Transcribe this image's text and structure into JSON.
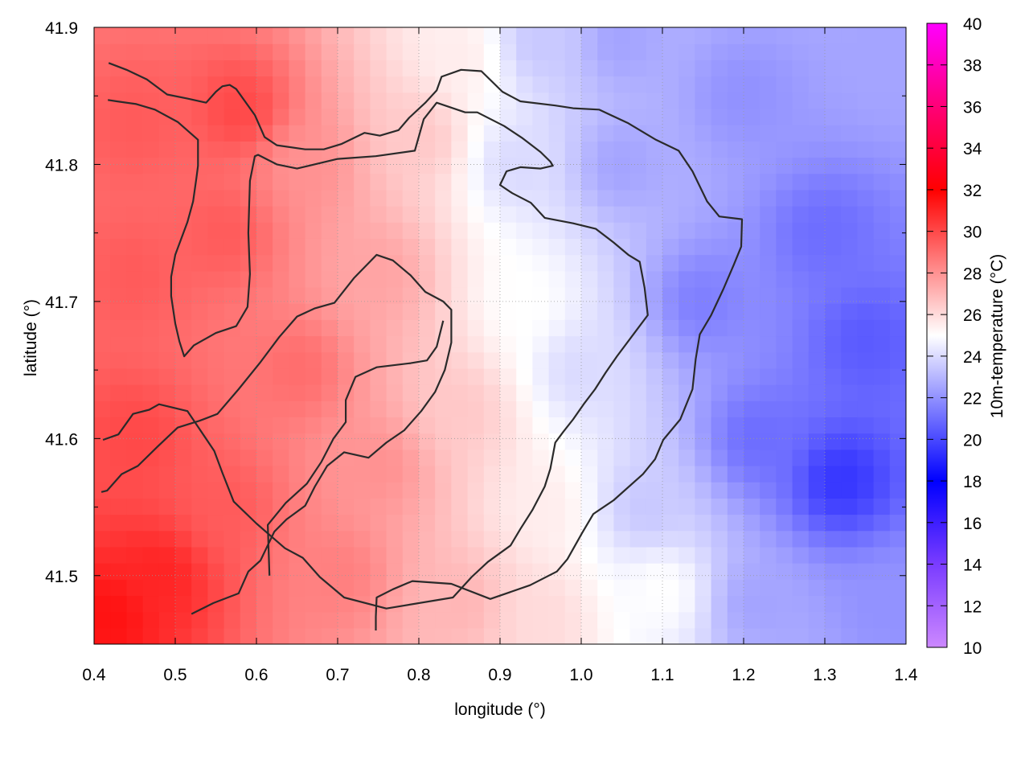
{
  "chart_data": {
    "type": "heatmap",
    "title": "",
    "xlabel": "longitude (°)",
    "ylabel": "latitude (°)",
    "colorbar_label": "10m-temperature (°C)",
    "xlim": [
      0.4,
      1.4
    ],
    "ylim": [
      41.45,
      41.9
    ],
    "x_ticks": [
      0.4,
      0.5,
      0.6,
      0.7,
      0.8,
      0.9,
      1.0,
      1.1,
      1.2,
      1.3,
      1.4
    ],
    "x_tick_labels": [
      "0.4",
      "0.5",
      "0.6",
      "0.7",
      "0.8",
      "0.9",
      "1.0",
      "1.1",
      "1.2",
      "1.3",
      "1.4"
    ],
    "y_ticks": [
      41.5,
      41.6,
      41.7,
      41.8,
      41.9
    ],
    "y_tick_labels": [
      "41.5",
      "41.6",
      "41.7",
      "41.8",
      "41.9"
    ],
    "colorbar_range": [
      10,
      40
    ],
    "colorbar_ticks": [
      10,
      12,
      14,
      16,
      18,
      20,
      22,
      24,
      26,
      28,
      30,
      32,
      34,
      36,
      38,
      40
    ],
    "colorbar_tick_labels": [
      "10",
      "12",
      "14",
      "16",
      "18",
      "20",
      "22",
      "24",
      "26",
      "28",
      "30",
      "32",
      "34",
      "36",
      "38",
      "40"
    ],
    "colormap": [
      {
        "v": 10,
        "color": "#cc88ff"
      },
      {
        "v": 14,
        "color": "#7a3cff"
      },
      {
        "v": 18,
        "color": "#0000ff"
      },
      {
        "v": 25,
        "color": "#ffffff"
      },
      {
        "v": 32,
        "color": "#ff0000"
      },
      {
        "v": 36,
        "color": "#ff0077"
      },
      {
        "v": 40,
        "color": "#ff00ff"
      }
    ],
    "grid": true,
    "field_control_points": [
      {
        "lon": 0.42,
        "lat": 41.47,
        "t": 31.5
      },
      {
        "lon": 0.48,
        "lat": 41.5,
        "t": 31.0
      },
      {
        "lon": 0.45,
        "lat": 41.6,
        "t": 30.0
      },
      {
        "lon": 0.45,
        "lat": 41.72,
        "t": 29.5
      },
      {
        "lon": 0.45,
        "lat": 41.83,
        "t": 29.5
      },
      {
        "lon": 0.58,
        "lat": 41.84,
        "t": 30.0
      },
      {
        "lon": 0.56,
        "lat": 41.75,
        "t": 29.5
      },
      {
        "lon": 0.56,
        "lat": 41.55,
        "t": 29.5
      },
      {
        "lon": 0.65,
        "lat": 41.65,
        "t": 29.0
      },
      {
        "lon": 0.66,
        "lat": 41.8,
        "t": 28.0
      },
      {
        "lon": 0.7,
        "lat": 41.5,
        "t": 28.5
      },
      {
        "lon": 0.75,
        "lat": 41.58,
        "t": 28.0
      },
      {
        "lon": 0.75,
        "lat": 41.72,
        "t": 27.5
      },
      {
        "lon": 0.8,
        "lat": 41.82,
        "t": 26.5
      },
      {
        "lon": 0.85,
        "lat": 41.88,
        "t": 25.5
      },
      {
        "lon": 0.85,
        "lat": 41.62,
        "t": 26.5
      },
      {
        "lon": 0.85,
        "lat": 41.48,
        "t": 27.0
      },
      {
        "lon": 0.92,
        "lat": 41.8,
        "t": 24.0
      },
      {
        "lon": 0.93,
        "lat": 41.7,
        "t": 25.0
      },
      {
        "lon": 0.95,
        "lat": 41.55,
        "t": 25.5
      },
      {
        "lon": 0.95,
        "lat": 41.47,
        "t": 26.0
      },
      {
        "lon": 1.0,
        "lat": 41.65,
        "t": 24.0
      },
      {
        "lon": 1.05,
        "lat": 41.8,
        "t": 22.5
      },
      {
        "lon": 1.08,
        "lat": 41.55,
        "t": 23.5
      },
      {
        "lon": 1.1,
        "lat": 41.49,
        "t": 25.0
      },
      {
        "lon": 1.15,
        "lat": 41.7,
        "t": 21.5
      },
      {
        "lon": 1.2,
        "lat": 41.85,
        "t": 22.0
      },
      {
        "lon": 1.22,
        "lat": 41.6,
        "t": 21.0
      },
      {
        "lon": 1.22,
        "lat": 41.48,
        "t": 22.5
      },
      {
        "lon": 1.3,
        "lat": 41.75,
        "t": 21.0
      },
      {
        "lon": 1.32,
        "lat": 41.57,
        "t": 19.5
      },
      {
        "lon": 1.35,
        "lat": 41.67,
        "t": 20.5
      },
      {
        "lon": 1.38,
        "lat": 41.88,
        "t": 22.5
      },
      {
        "lon": 1.38,
        "lat": 41.48,
        "t": 22.0
      },
      {
        "lon": 1.05,
        "lat": 41.89,
        "t": 22.5
      },
      {
        "lon": 0.95,
        "lat": 41.89,
        "t": 23.5
      }
    ],
    "contours": [
      [
        [
          0.418,
          41.874
        ],
        [
          0.44,
          41.869
        ],
        [
          0.465,
          41.862
        ],
        [
          0.49,
          41.851
        ],
        [
          0.515,
          41.848
        ],
        [
          0.538,
          41.845
        ],
        [
          0.55,
          41.853
        ],
        [
          0.558,
          41.857
        ],
        [
          0.567,
          41.858
        ],
        [
          0.575,
          41.855
        ],
        [
          0.598,
          41.836
        ],
        [
          0.61,
          41.82
        ],
        [
          0.625,
          41.814
        ],
        [
          0.66,
          41.811
        ],
        [
          0.683,
          41.811
        ],
        [
          0.705,
          41.815
        ],
        [
          0.733,
          41.823
        ],
        [
          0.752,
          41.821
        ],
        [
          0.775,
          41.825
        ],
        [
          0.788,
          41.834
        ],
        [
          0.808,
          41.845
        ],
        [
          0.822,
          41.854
        ],
        [
          0.828,
          41.864
        ],
        [
          0.852,
          41.869
        ],
        [
          0.877,
          41.868
        ],
        [
          0.903,
          41.853
        ],
        [
          0.925,
          41.846
        ],
        [
          0.968,
          41.843
        ],
        [
          0.99,
          41.841
        ],
        [
          1.022,
          41.84
        ],
        [
          1.058,
          41.83
        ],
        [
          1.092,
          41.818
        ],
        [
          1.12,
          41.81
        ],
        [
          1.137,
          41.795
        ],
        [
          1.155,
          41.773
        ],
        [
          1.17,
          41.762
        ],
        [
          1.198,
          41.76
        ],
        [
          1.197,
          41.74
        ],
        [
          1.188,
          41.727
        ],
        [
          1.175,
          41.709
        ],
        [
          1.16,
          41.69
        ],
        [
          1.146,
          41.676
        ],
        [
          1.141,
          41.658
        ],
        [
          1.137,
          41.636
        ],
        [
          1.122,
          41.614
        ],
        [
          1.101,
          41.599
        ],
        [
          1.091,
          41.585
        ],
        [
          1.076,
          41.574
        ],
        [
          1.04,
          41.555
        ],
        [
          1.015,
          41.545
        ],
        [
          1.001,
          41.531
        ],
        [
          0.983,
          41.512
        ],
        [
          0.97,
          41.503
        ],
        [
          0.937,
          41.493
        ],
        [
          0.888,
          41.483
        ],
        [
          0.84,
          41.494
        ],
        [
          0.792,
          41.496
        ],
        [
          0.768,
          41.49
        ],
        [
          0.748,
          41.484
        ],
        [
          0.747,
          41.47
        ],
        [
          0.747,
          41.46
        ]
      ],
      [
        [
          0.417,
          41.847
        ],
        [
          0.428,
          41.846
        ],
        [
          0.452,
          41.844
        ],
        [
          0.475,
          41.84
        ],
        [
          0.503,
          41.831
        ],
        [
          0.528,
          41.818
        ],
        [
          0.528,
          41.799
        ],
        [
          0.526,
          41.79
        ],
        [
          0.522,
          41.773
        ],
        [
          0.515,
          41.758
        ],
        [
          0.5,
          41.734
        ],
        [
          0.495,
          41.718
        ],
        [
          0.495,
          41.704
        ],
        [
          0.5,
          41.684
        ],
        [
          0.505,
          41.671
        ],
        [
          0.511,
          41.66
        ],
        [
          0.523,
          41.668
        ],
        [
          0.55,
          41.677
        ],
        [
          0.575,
          41.682
        ],
        [
          0.589,
          41.696
        ],
        [
          0.592,
          41.72
        ],
        [
          0.59,
          41.75
        ],
        [
          0.592,
          41.788
        ],
        [
          0.598,
          41.806
        ],
        [
          0.602,
          41.807
        ],
        [
          0.625,
          41.8
        ],
        [
          0.65,
          41.797
        ],
        [
          0.7,
          41.804
        ],
        [
          0.747,
          41.806
        ],
        [
          0.795,
          41.81
        ],
        [
          0.806,
          41.833
        ],
        [
          0.822,
          41.845
        ],
        [
          0.857,
          41.838
        ],
        [
          0.872,
          41.838
        ],
        [
          0.905,
          41.828
        ],
        [
          0.928,
          41.819
        ],
        [
          0.95,
          41.809
        ],
        [
          0.962,
          41.802
        ],
        [
          0.965,
          41.799
        ],
        [
          0.95,
          41.797
        ],
        [
          0.925,
          41.798
        ],
        [
          0.908,
          41.795
        ],
        [
          0.9,
          41.785
        ],
        [
          0.915,
          41.779
        ],
        [
          0.938,
          41.772
        ],
        [
          0.955,
          41.761
        ],
        [
          0.99,
          41.757
        ],
        [
          1.018,
          41.753
        ],
        [
          1.04,
          41.743
        ],
        [
          1.058,
          41.734
        ],
        [
          1.072,
          41.729
        ],
        [
          1.078,
          41.71
        ],
        [
          1.082,
          41.69
        ],
        [
          1.068,
          41.679
        ],
        [
          1.044,
          41.66
        ],
        [
          1.03,
          41.648
        ],
        [
          1.017,
          41.636
        ],
        [
          1.003,
          41.625
        ],
        [
          0.99,
          41.614
        ],
        [
          0.978,
          41.605
        ],
        [
          0.968,
          41.597
        ],
        [
          0.962,
          41.578
        ],
        [
          0.955,
          41.565
        ],
        [
          0.94,
          41.548
        ],
        [
          0.925,
          41.534
        ],
        [
          0.913,
          41.522
        ],
        [
          0.885,
          41.51
        ],
        [
          0.865,
          41.499
        ],
        [
          0.842,
          41.484
        ],
        [
          0.76,
          41.476
        ],
        [
          0.708,
          41.484
        ],
        [
          0.678,
          41.499
        ],
        [
          0.657,
          41.513
        ],
        [
          0.635,
          41.52
        ],
        [
          0.6,
          41.538
        ],
        [
          0.572,
          41.554
        ],
        [
          0.558,
          41.575
        ],
        [
          0.548,
          41.591
        ],
        [
          0.515,
          41.62
        ],
        [
          0.48,
          41.625
        ],
        [
          0.468,
          41.621
        ],
        [
          0.448,
          41.618
        ],
        [
          0.43,
          41.603
        ],
        [
          0.411,
          41.599
        ]
      ],
      [
        [
          0.52,
          41.472
        ],
        [
          0.547,
          41.48
        ],
        [
          0.578,
          41.487
        ],
        [
          0.59,
          41.503
        ],
        [
          0.605,
          41.511
        ],
        [
          0.622,
          41.532
        ],
        [
          0.637,
          41.541
        ],
        [
          0.66,
          41.551
        ],
        [
          0.672,
          41.565
        ],
        [
          0.687,
          41.58
        ],
        [
          0.708,
          41.59
        ],
        [
          0.738,
          41.586
        ],
        [
          0.76,
          41.597
        ],
        [
          0.782,
          41.606
        ],
        [
          0.803,
          41.62
        ],
        [
          0.82,
          41.634
        ],
        [
          0.832,
          41.65
        ],
        [
          0.84,
          41.67
        ],
        [
          0.84,
          41.694
        ],
        [
          0.83,
          41.7
        ],
        [
          0.808,
          41.707
        ],
        [
          0.79,
          41.719
        ],
        [
          0.768,
          41.73
        ],
        [
          0.748,
          41.734
        ],
        [
          0.72,
          41.717
        ],
        [
          0.696,
          41.699
        ],
        [
          0.672,
          41.695
        ],
        [
          0.65,
          41.689
        ],
        [
          0.628,
          41.674
        ],
        [
          0.604,
          41.655
        ],
        [
          0.578,
          41.636
        ],
        [
          0.552,
          41.618
        ],
        [
          0.53,
          41.613
        ],
        [
          0.503,
          41.608
        ],
        [
          0.478,
          41.594
        ],
        [
          0.454,
          41.58
        ],
        [
          0.434,
          41.574
        ],
        [
          0.416,
          41.562
        ],
        [
          0.409,
          41.561
        ]
      ],
      [
        [
          0.616,
          41.5
        ],
        [
          0.614,
          41.537
        ],
        [
          0.636,
          41.553
        ],
        [
          0.662,
          41.567
        ],
        [
          0.68,
          41.583
        ],
        [
          0.695,
          41.6
        ],
        [
          0.71,
          41.612
        ],
        [
          0.71,
          41.628
        ],
        [
          0.722,
          41.645
        ],
        [
          0.748,
          41.652
        ],
        [
          0.79,
          41.655
        ],
        [
          0.81,
          41.657
        ],
        [
          0.822,
          41.667
        ],
        [
          0.83,
          41.686
        ]
      ]
    ]
  }
}
